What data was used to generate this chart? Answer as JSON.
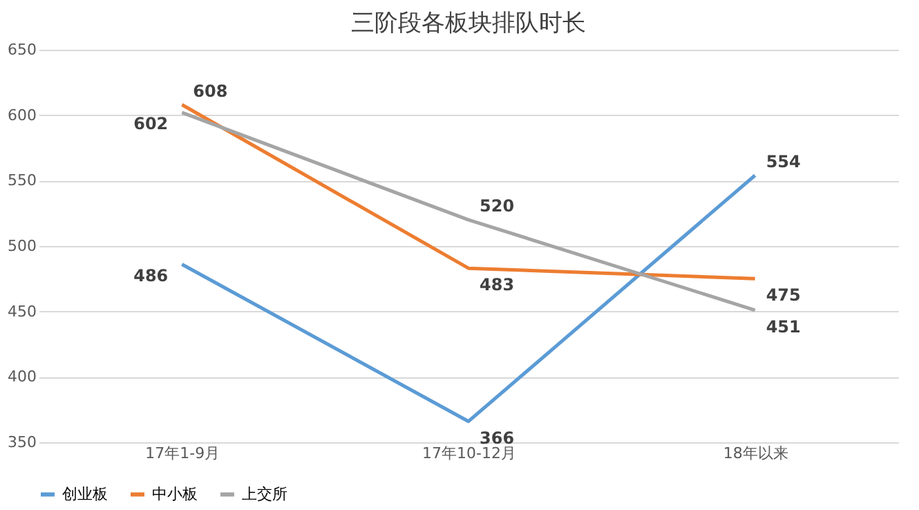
{
  "chart_data": {
    "type": "line",
    "title": "三阶段各板块排队时长",
    "categories": [
      "17年1-9月",
      "17年10-12月",
      "18年以来"
    ],
    "series": [
      {
        "name": "创业板",
        "color": "#5b9bd5",
        "values": [
          486,
          366,
          554
        ]
      },
      {
        "name": "中小板",
        "color": "#ed7d31",
        "values": [
          608,
          483,
          475
        ]
      },
      {
        "name": "上交所",
        "color": "#a5a5a5",
        "values": [
          602,
          520,
          451
        ]
      }
    ],
    "ylim": [
      350,
      650
    ],
    "yticks": [
      350,
      400,
      450,
      500,
      550,
      600,
      650
    ],
    "grid": "y",
    "legend": "bottom",
    "data_labels": true,
    "marker": "none",
    "line_style": "solid"
  }
}
